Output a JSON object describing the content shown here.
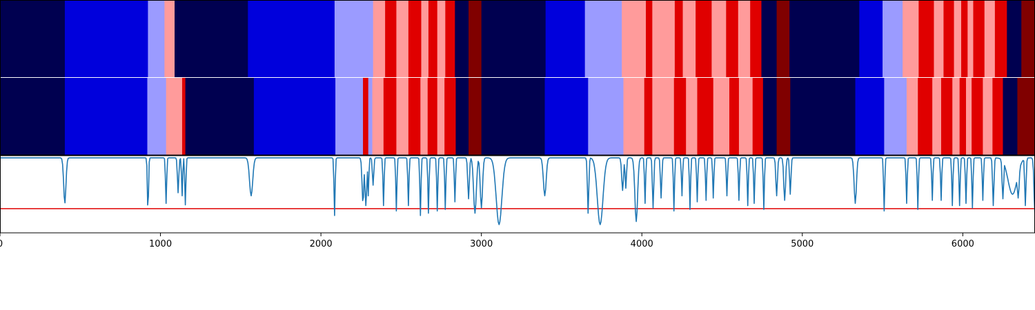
{
  "chart_data": {
    "type": "heatmap",
    "xlim": [
      0,
      6450
    ],
    "xticks": [
      0,
      1000,
      2000,
      3000,
      4000,
      5000,
      6000
    ],
    "xtick_labels": [
      "0",
      "1000",
      "2000",
      "3000",
      "4000",
      "5000",
      "6000"
    ],
    "class_colors": {
      "0": "#000050",
      "1": "#0000dc",
      "2": "#9b9bff",
      "3": "#ff9b9b",
      "4": "#e00000",
      "5": "#800000"
    },
    "rows": [
      {
        "segments": [
          [
            0,
            404,
            0
          ],
          [
            404,
            922,
            1
          ],
          [
            922,
            1025,
            2
          ],
          [
            1025,
            1088,
            3
          ],
          [
            1088,
            1545,
            0
          ],
          [
            1545,
            2085,
            1
          ],
          [
            2085,
            2325,
            2
          ],
          [
            2325,
            2400,
            3
          ],
          [
            2400,
            2470,
            4
          ],
          [
            2470,
            2545,
            3
          ],
          [
            2545,
            2625,
            4
          ],
          [
            2625,
            2670,
            3
          ],
          [
            2670,
            2725,
            4
          ],
          [
            2725,
            2775,
            3
          ],
          [
            2775,
            2835,
            4
          ],
          [
            2835,
            2920,
            0
          ],
          [
            2920,
            3000,
            5
          ],
          [
            3000,
            3400,
            0
          ],
          [
            3400,
            3645,
            1
          ],
          [
            3645,
            3875,
            2
          ],
          [
            3875,
            4025,
            3
          ],
          [
            4025,
            4065,
            4
          ],
          [
            4065,
            4205,
            3
          ],
          [
            4205,
            4255,
            4
          ],
          [
            4255,
            4335,
            3
          ],
          [
            4335,
            4435,
            4
          ],
          [
            4435,
            4525,
            3
          ],
          [
            4525,
            4600,
            4
          ],
          [
            4600,
            4675,
            3
          ],
          [
            4675,
            4745,
            4
          ],
          [
            4745,
            4840,
            0
          ],
          [
            4840,
            4920,
            5
          ],
          [
            4920,
            5355,
            0
          ],
          [
            5355,
            5500,
            1
          ],
          [
            5500,
            5625,
            2
          ],
          [
            5625,
            5725,
            3
          ],
          [
            5725,
            5820,
            4
          ],
          [
            5820,
            5880,
            3
          ],
          [
            5880,
            5945,
            4
          ],
          [
            5945,
            5990,
            3
          ],
          [
            5990,
            6030,
            4
          ],
          [
            6030,
            6065,
            3
          ],
          [
            6065,
            6135,
            4
          ],
          [
            6135,
            6200,
            3
          ],
          [
            6200,
            6275,
            4
          ],
          [
            6275,
            6365,
            0
          ],
          [
            6365,
            6475,
            5
          ],
          [
            6475,
            6550,
            0
          ]
        ]
      },
      {
        "segments": [
          [
            0,
            404,
            0
          ],
          [
            404,
            918,
            1
          ],
          [
            918,
            1035,
            2
          ],
          [
            1035,
            1135,
            3
          ],
          [
            1135,
            1155,
            4
          ],
          [
            1155,
            1582,
            0
          ],
          [
            1582,
            2090,
            1
          ],
          [
            2090,
            2262,
            2
          ],
          [
            2262,
            2295,
            4
          ],
          [
            2295,
            2320,
            2
          ],
          [
            2320,
            2390,
            3
          ],
          [
            2390,
            2470,
            4
          ],
          [
            2470,
            2545,
            3
          ],
          [
            2545,
            2620,
            4
          ],
          [
            2620,
            2665,
            3
          ],
          [
            2665,
            2725,
            4
          ],
          [
            2725,
            2770,
            3
          ],
          [
            2770,
            2840,
            4
          ],
          [
            2840,
            2920,
            0
          ],
          [
            2920,
            3000,
            5
          ],
          [
            3000,
            3395,
            0
          ],
          [
            3395,
            3665,
            1
          ],
          [
            3665,
            3885,
            2
          ],
          [
            3885,
            4015,
            3
          ],
          [
            4015,
            4065,
            4
          ],
          [
            4065,
            4200,
            3
          ],
          [
            4200,
            4275,
            4
          ],
          [
            4275,
            4345,
            3
          ],
          [
            4345,
            4445,
            4
          ],
          [
            4445,
            4545,
            3
          ],
          [
            4545,
            4605,
            4
          ],
          [
            4605,
            4690,
            3
          ],
          [
            4690,
            4755,
            4
          ],
          [
            4755,
            4840,
            0
          ],
          [
            4840,
            4925,
            5
          ],
          [
            4925,
            5330,
            0
          ],
          [
            5330,
            5510,
            1
          ],
          [
            5510,
            5650,
            2
          ],
          [
            5650,
            5720,
            3
          ],
          [
            5720,
            5810,
            4
          ],
          [
            5810,
            5865,
            3
          ],
          [
            5865,
            5935,
            4
          ],
          [
            5935,
            5980,
            3
          ],
          [
            5980,
            6020,
            4
          ],
          [
            6020,
            6055,
            3
          ],
          [
            6055,
            6125,
            4
          ],
          [
            6125,
            6185,
            3
          ],
          [
            6185,
            6250,
            4
          ],
          [
            6250,
            6340,
            0
          ],
          [
            6340,
            6450,
            5
          ]
        ]
      }
    ],
    "line_series": {
      "color": "#1f77b4",
      "ylim": [
        0,
        1
      ],
      "baseline": 0.98,
      "dips": [
        [
          404,
          0.38,
          10
        ],
        [
          922,
          0.25,
          5
        ],
        [
          1035,
          0.38,
          5
        ],
        [
          1110,
          0.52,
          6
        ],
        [
          1135,
          0.48,
          5
        ],
        [
          1155,
          0.36,
          5
        ],
        [
          1565,
          0.48,
          14
        ],
        [
          2085,
          0.22,
          5
        ],
        [
          2262,
          0.38,
          8
        ],
        [
          2280,
          0.35,
          8
        ],
        [
          2295,
          0.48,
          5
        ],
        [
          2325,
          0.62,
          6
        ],
        [
          2390,
          0.35,
          5
        ],
        [
          2470,
          0.28,
          5
        ],
        [
          2545,
          0.35,
          5
        ],
        [
          2620,
          0.22,
          5
        ],
        [
          2670,
          0.25,
          5
        ],
        [
          2725,
          0.28,
          5
        ],
        [
          2775,
          0.3,
          5
        ],
        [
          2835,
          0.4,
          5
        ],
        [
          2920,
          0.44,
          7
        ],
        [
          2960,
          0.25,
          12
        ],
        [
          3000,
          0.32,
          10
        ],
        [
          3110,
          0.1,
          25
        ],
        [
          3395,
          0.48,
          12
        ],
        [
          3665,
          0.25,
          6
        ],
        [
          3740,
          0.1,
          25
        ],
        [
          3880,
          0.55,
          8
        ],
        [
          3900,
          0.58,
          6
        ],
        [
          3965,
          0.14,
          12
        ],
        [
          4020,
          0.38,
          5
        ],
        [
          4070,
          0.32,
          6
        ],
        [
          4120,
          0.45,
          6
        ],
        [
          4200,
          0.28,
          5
        ],
        [
          4250,
          0.48,
          5
        ],
        [
          4300,
          0.3,
          5
        ],
        [
          4345,
          0.4,
          5
        ],
        [
          4400,
          0.42,
          5
        ],
        [
          4445,
          0.45,
          5
        ],
        [
          4530,
          0.48,
          5
        ],
        [
          4605,
          0.42,
          5
        ],
        [
          4660,
          0.35,
          5
        ],
        [
          4700,
          0.38,
          5
        ],
        [
          4760,
          0.3,
          5
        ],
        [
          4840,
          0.48,
          7
        ],
        [
          4890,
          0.42,
          8
        ],
        [
          4925,
          0.5,
          6
        ],
        [
          5330,
          0.38,
          10
        ],
        [
          5510,
          0.28,
          5
        ],
        [
          5650,
          0.38,
          5
        ],
        [
          5720,
          0.3,
          5
        ],
        [
          5810,
          0.42,
          5
        ],
        [
          5865,
          0.42,
          5
        ],
        [
          5935,
          0.35,
          5
        ],
        [
          5980,
          0.35,
          5
        ],
        [
          6020,
          0.38,
          5
        ],
        [
          6060,
          0.32,
          5
        ],
        [
          6125,
          0.42,
          5
        ],
        [
          6190,
          0.35,
          6
        ],
        [
          6250,
          0.44,
          7
        ],
        [
          6310,
          0.5,
          40
        ],
        [
          6345,
          0.45,
          10
        ],
        [
          6390,
          0.35,
          6
        ],
        [
          6450,
          0.2,
          8
        ]
      ]
    },
    "threshold": {
      "value": 0.31,
      "color": "#e00000"
    }
  }
}
